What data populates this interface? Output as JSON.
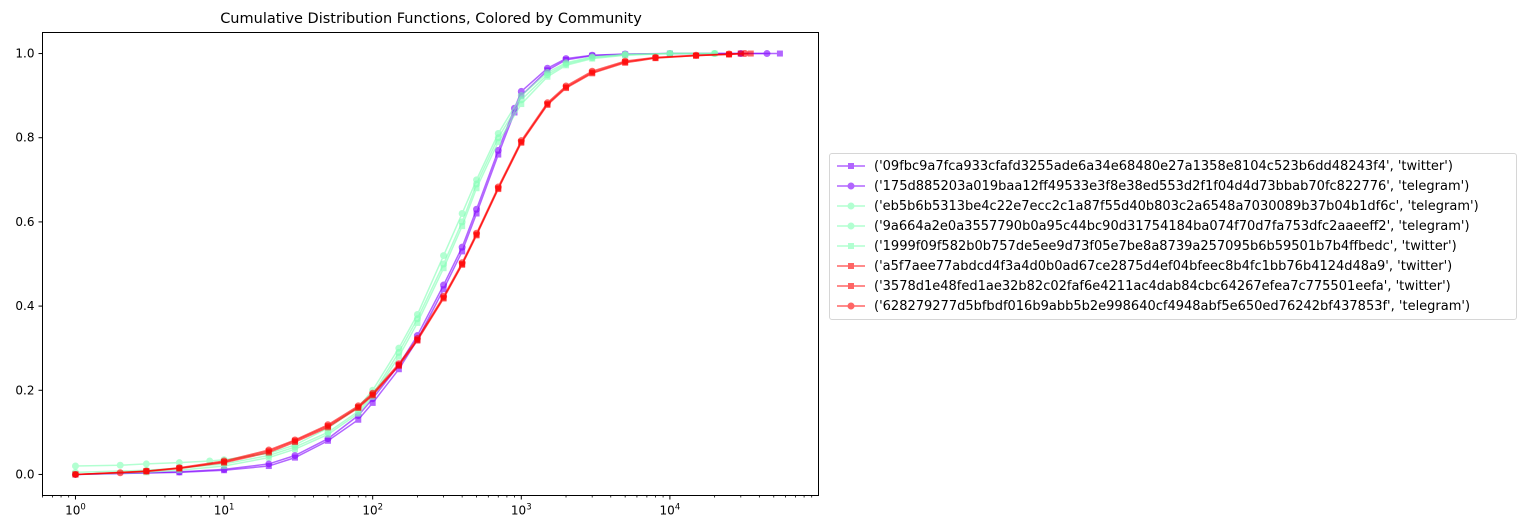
{
  "chart_data": {
    "type": "line",
    "title": "Cumulative Distribution Functions, Colored by Community",
    "xlabel": "",
    "ylabel": "",
    "xscale": "log",
    "xlim": [
      0.6,
      100000
    ],
    "ylim": [
      -0.05,
      1.05
    ],
    "x_ticks": [
      {
        "value": 1,
        "base": "10",
        "exp": "0"
      },
      {
        "value": 10,
        "base": "10",
        "exp": "1"
      },
      {
        "value": 100,
        "base": "10",
        "exp": "2"
      },
      {
        "value": 1000,
        "base": "10",
        "exp": "3"
      },
      {
        "value": 10000,
        "base": "10",
        "exp": "4"
      }
    ],
    "y_ticks": [
      "0.0",
      "0.2",
      "0.4",
      "0.6",
      "0.8",
      "1.0"
    ],
    "grid": false,
    "legend_position": "center-right-outside",
    "series": [
      {
        "name": "('09fbc9a7fca933cfafd3255ade6a34e68480e27a1358e8104c523b6dd48243f4', 'twitter')",
        "color": "#8000ff",
        "marker": "square",
        "x": [
          1,
          5,
          10,
          20,
          30,
          50,
          80,
          100,
          150,
          200,
          300,
          400,
          500,
          700,
          900,
          1000,
          1500,
          2000,
          3000,
          5000,
          10000,
          30000,
          55000
        ],
        "y": [
          0.0,
          0.005,
          0.01,
          0.02,
          0.04,
          0.08,
          0.13,
          0.17,
          0.25,
          0.32,
          0.44,
          0.53,
          0.62,
          0.76,
          0.86,
          0.9,
          0.96,
          0.985,
          0.995,
          0.998,
          1.0,
          1.0,
          1.0
        ]
      },
      {
        "name": "('175d885203a019baa12ff49533e3f8e38ed553d2f1f04d4d73bbab70fc822776', 'telegram')",
        "color": "#8000ff",
        "marker": "circle",
        "x": [
          1,
          5,
          10,
          20,
          30,
          50,
          80,
          100,
          150,
          200,
          300,
          400,
          500,
          700,
          900,
          1000,
          1500,
          2000,
          3000,
          5000,
          10000,
          30000,
          45000
        ],
        "y": [
          0.0,
          0.006,
          0.012,
          0.025,
          0.045,
          0.085,
          0.14,
          0.18,
          0.26,
          0.33,
          0.45,
          0.54,
          0.63,
          0.77,
          0.87,
          0.91,
          0.965,
          0.988,
          0.996,
          0.999,
          1.0,
          1.0,
          1.0
        ]
      },
      {
        "name": "('eb5b6b5313be4c22e7ecc2c1a87f55d40b803c2a6548a7030089b37b04b1df6c', 'telegram')",
        "color": "#80ffb4",
        "marker": "circle",
        "x": [
          1,
          2,
          3,
          5,
          8,
          10,
          20,
          30,
          50,
          80,
          100,
          150,
          200,
          300,
          400,
          500,
          700,
          1000,
          1500,
          2000,
          3000,
          5000,
          10000,
          20000
        ],
        "y": [
          0.02,
          0.022,
          0.025,
          0.028,
          0.032,
          0.035,
          0.05,
          0.07,
          0.11,
          0.16,
          0.2,
          0.3,
          0.38,
          0.52,
          0.62,
          0.7,
          0.81,
          0.9,
          0.955,
          0.978,
          0.992,
          0.998,
          1.0,
          1.0
        ]
      },
      {
        "name": "('9a664a2e0a3557790b0a95c44bc90d31754184ba074f70d7fa753dfc2aaeeff2', 'telegram')",
        "color": "#80ffb4",
        "marker": "circle",
        "x": [
          1,
          3,
          5,
          10,
          20,
          30,
          50,
          80,
          100,
          150,
          200,
          300,
          400,
          500,
          700,
          1000,
          1500,
          2000,
          3000,
          5000,
          10000,
          20000
        ],
        "y": [
          0.005,
          0.01,
          0.015,
          0.025,
          0.045,
          0.065,
          0.1,
          0.15,
          0.19,
          0.29,
          0.37,
          0.5,
          0.6,
          0.69,
          0.8,
          0.89,
          0.95,
          0.975,
          0.99,
          0.997,
          1.0,
          1.0
        ]
      },
      {
        "name": "('1999f09f582b0b757de5ee9d73f05e7be8a8739a257095b6b59501b7b4ffbedc', 'twitter')",
        "color": "#80ffb4",
        "marker": "square",
        "x": [
          1,
          3,
          5,
          10,
          20,
          30,
          50,
          80,
          100,
          150,
          200,
          300,
          400,
          500,
          700,
          1000,
          1500,
          2000,
          3000,
          5000,
          10000,
          20000
        ],
        "y": [
          0.0,
          0.005,
          0.01,
          0.02,
          0.04,
          0.06,
          0.095,
          0.145,
          0.185,
          0.28,
          0.36,
          0.49,
          0.59,
          0.68,
          0.79,
          0.88,
          0.945,
          0.972,
          0.988,
          0.996,
          1.0,
          1.0
        ]
      },
      {
        "name": "('a5f7aee77abdcd4f3a4d0b0ad67ce2875d4ef04bfeec8b4fc1bb76b4124d48a9', 'twitter')",
        "color": "#ff0000",
        "marker": "square",
        "x": [
          1,
          3,
          5,
          10,
          20,
          30,
          50,
          80,
          100,
          150,
          200,
          300,
          400,
          500,
          700,
          1000,
          1500,
          2000,
          3000,
          5000,
          8000,
          15000,
          25000,
          35000
        ],
        "y": [
          0.0,
          0.008,
          0.015,
          0.03,
          0.055,
          0.08,
          0.115,
          0.16,
          0.19,
          0.26,
          0.32,
          0.42,
          0.5,
          0.57,
          0.68,
          0.79,
          0.88,
          0.92,
          0.955,
          0.98,
          0.99,
          0.995,
          0.998,
          1.0
        ]
      },
      {
        "name": "('3578d1e48fed1ae32b82c02faf6e4211ac4dab84cbc64267efea7c775501eefa', 'twitter')",
        "color": "#ff0000",
        "marker": "square",
        "x": [
          1,
          3,
          5,
          10,
          20,
          30,
          50,
          80,
          100,
          150,
          200,
          300,
          400,
          500,
          700,
          1000,
          1500,
          2000,
          3000,
          5000,
          8000,
          15000,
          25000,
          30000
        ],
        "y": [
          0.0,
          0.007,
          0.014,
          0.028,
          0.052,
          0.077,
          0.112,
          0.158,
          0.188,
          0.258,
          0.318,
          0.418,
          0.498,
          0.568,
          0.678,
          0.788,
          0.878,
          0.918,
          0.953,
          0.978,
          0.989,
          0.995,
          0.998,
          1.0
        ]
      },
      {
        "name": "('628279277d5bfbdf016b9abb5b2e998640cf4948abf5e650ed76242bf437853f', 'telegram')",
        "color": "#ff0000",
        "marker": "circle",
        "x": [
          1,
          2,
          3,
          5,
          10,
          20,
          30,
          50,
          80,
          100,
          150,
          200,
          300,
          400,
          500,
          700,
          1000,
          1500,
          2000,
          3000,
          5000,
          8000,
          15000,
          25000,
          32000
        ],
        "y": [
          0.0,
          0.004,
          0.008,
          0.016,
          0.032,
          0.058,
          0.082,
          0.118,
          0.163,
          0.193,
          0.263,
          0.323,
          0.423,
          0.503,
          0.573,
          0.683,
          0.793,
          0.883,
          0.923,
          0.958,
          0.982,
          0.991,
          0.996,
          0.999,
          1.0
        ]
      }
    ]
  }
}
